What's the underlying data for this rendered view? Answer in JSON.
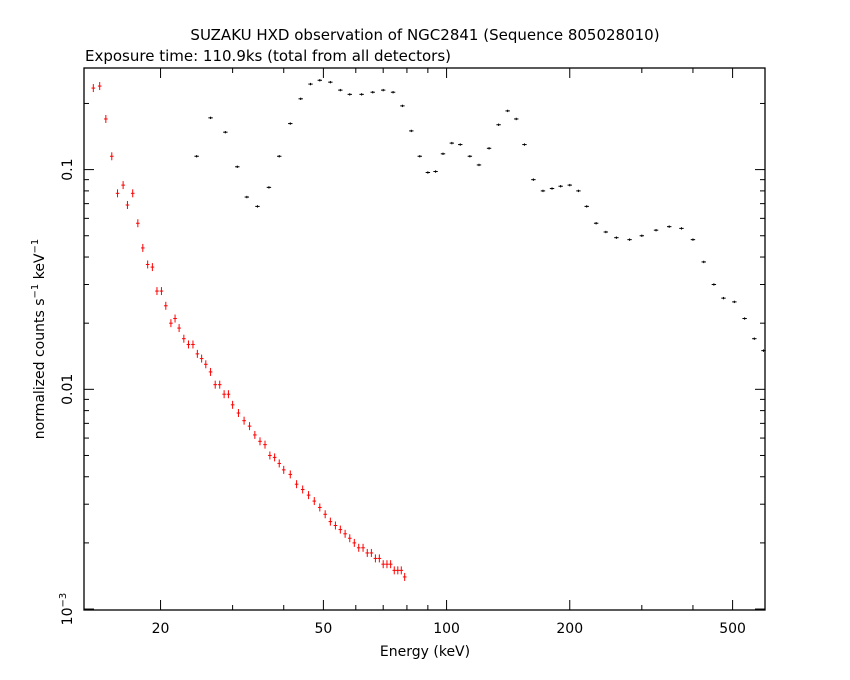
{
  "chart_data": {
    "type": "scatter",
    "title": "SUZAKU HXD observation of NGC2841 (Sequence 805028010)",
    "subtitle": "Exposure time: 110.9ks (total from all detectors)",
    "xlabel": "Energy (keV)",
    "ylabel_main": "normalized counts s",
    "ylabel_sup1": "−1",
    "ylabel_mid": " keV",
    "ylabel_sup2": "−1",
    "xscale": "log",
    "yscale": "log",
    "xlim": [
      13,
      600
    ],
    "ylim": [
      0.00099,
      0.29
    ],
    "xticks": [
      {
        "value": 20,
        "label": "20"
      },
      {
        "value": 50,
        "label": "50"
      },
      {
        "value": 100,
        "label": "100"
      },
      {
        "value": 200,
        "label": "200"
      },
      {
        "value": 500,
        "label": "500"
      }
    ],
    "yticks": [
      {
        "value": 0.1,
        "label": "0.1"
      },
      {
        "value": 0.01,
        "label": "0.01"
      },
      {
        "value": 0.001,
        "label": "10",
        "sup": "−3"
      }
    ],
    "grid": false,
    "series": [
      {
        "color": "#ff0000",
        "points": [
          [
            13.7,
            0.235
          ],
          [
            14.2,
            0.24
          ],
          [
            14.7,
            0.17
          ],
          [
            15.2,
            0.115
          ],
          [
            15.7,
            0.078
          ],
          [
            16.2,
            0.085
          ],
          [
            16.6,
            0.069
          ],
          [
            17.1,
            0.078
          ],
          [
            17.6,
            0.057
          ],
          [
            18.1,
            0.044
          ],
          [
            18.6,
            0.037
          ],
          [
            19.1,
            0.036
          ],
          [
            19.6,
            0.028
          ],
          [
            20.1,
            0.028
          ],
          [
            20.6,
            0.024
          ],
          [
            21.2,
            0.02
          ],
          [
            21.7,
            0.021
          ],
          [
            22.2,
            0.019
          ],
          [
            22.8,
            0.017
          ],
          [
            23.4,
            0.016
          ],
          [
            24.0,
            0.016
          ],
          [
            24.6,
            0.0145
          ],
          [
            25.2,
            0.0138
          ],
          [
            25.8,
            0.013
          ],
          [
            26.5,
            0.012
          ],
          [
            27.2,
            0.0105
          ],
          [
            27.9,
            0.0105
          ],
          [
            28.6,
            0.0095
          ],
          [
            29.3,
            0.0095
          ],
          [
            30.0,
            0.0085
          ],
          [
            31.0,
            0.0078
          ],
          [
            32.0,
            0.0072
          ],
          [
            33.0,
            0.0068
          ],
          [
            34.0,
            0.0062
          ],
          [
            35.0,
            0.0058
          ],
          [
            36.0,
            0.0056
          ],
          [
            37.0,
            0.005
          ],
          [
            38.0,
            0.0049
          ],
          [
            39.0,
            0.0046
          ],
          [
            40.0,
            0.0043
          ],
          [
            41.5,
            0.0041
          ],
          [
            43.0,
            0.0037
          ],
          [
            44.5,
            0.0035
          ],
          [
            46.0,
            0.0033
          ],
          [
            47.5,
            0.0031
          ],
          [
            49.0,
            0.0029
          ],
          [
            50.5,
            0.0027
          ],
          [
            52.0,
            0.0025
          ],
          [
            53.5,
            0.0024
          ],
          [
            55.0,
            0.0023
          ],
          [
            56.5,
            0.0022
          ],
          [
            58.0,
            0.0021
          ],
          [
            59.5,
            0.002
          ],
          [
            61.0,
            0.0019
          ],
          [
            62.5,
            0.0019
          ],
          [
            64.0,
            0.0018
          ],
          [
            65.5,
            0.0018
          ],
          [
            67.0,
            0.0017
          ],
          [
            68.5,
            0.0017
          ],
          [
            70.0,
            0.0016
          ],
          [
            71.5,
            0.0016
          ],
          [
            73.0,
            0.0016
          ],
          [
            74.5,
            0.0015
          ],
          [
            76.0,
            0.0015
          ],
          [
            77.5,
            0.0015
          ],
          [
            79.0,
            0.0014
          ]
        ]
      },
      {
        "color": "#000000",
        "points": [
          [
            24.5,
            0.115
          ],
          [
            26.5,
            0.172
          ],
          [
            28.8,
            0.148
          ],
          [
            30.8,
            0.103
          ],
          [
            32.5,
            0.075
          ],
          [
            34.5,
            0.068
          ],
          [
            36.8,
            0.083
          ],
          [
            39.0,
            0.115
          ],
          [
            41.5,
            0.162
          ],
          [
            44.0,
            0.21
          ],
          [
            46.5,
            0.245
          ],
          [
            49.0,
            0.255
          ],
          [
            52.0,
            0.25
          ],
          [
            55.0,
            0.23
          ],
          [
            58.0,
            0.22
          ],
          [
            62.0,
            0.22
          ],
          [
            66.0,
            0.225
          ],
          [
            70.0,
            0.23
          ],
          [
            74.0,
            0.225
          ],
          [
            78.0,
            0.195
          ],
          [
            82.0,
            0.15
          ],
          [
            86.0,
            0.115
          ],
          [
            90.0,
            0.097
          ],
          [
            94.0,
            0.098
          ],
          [
            98.0,
            0.118
          ],
          [
            103.0,
            0.132
          ],
          [
            108.0,
            0.13
          ],
          [
            114.0,
            0.115
          ],
          [
            120.0,
            0.105
          ],
          [
            127.0,
            0.125
          ],
          [
            134.0,
            0.16
          ],
          [
            141.0,
            0.185
          ],
          [
            148.0,
            0.17
          ],
          [
            155.0,
            0.13
          ],
          [
            163.0,
            0.09
          ],
          [
            172.0,
            0.08
          ],
          [
            181.0,
            0.082
          ],
          [
            190.0,
            0.084
          ],
          [
            200.0,
            0.085
          ],
          [
            210.0,
            0.08
          ],
          [
            220.0,
            0.068
          ],
          [
            232.0,
            0.057
          ],
          [
            245.0,
            0.052
          ],
          [
            260.0,
            0.049
          ],
          [
            280.0,
            0.048
          ],
          [
            300.0,
            0.05
          ],
          [
            325.0,
            0.053
          ],
          [
            350.0,
            0.055
          ],
          [
            375.0,
            0.054
          ],
          [
            400.0,
            0.048
          ],
          [
            425.0,
            0.038
          ],
          [
            450.0,
            0.03
          ],
          [
            475.0,
            0.026
          ],
          [
            505.0,
            0.025
          ],
          [
            535.0,
            0.021
          ],
          [
            565.0,
            0.017
          ],
          [
            595.0,
            0.015
          ]
        ]
      }
    ]
  }
}
